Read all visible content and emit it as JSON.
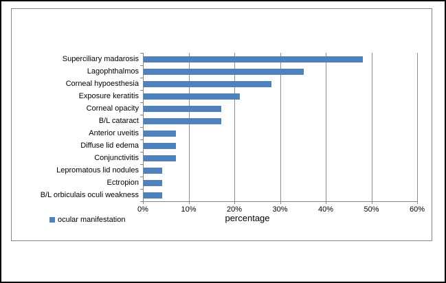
{
  "chart_data": {
    "type": "bar",
    "orientation": "horizontal",
    "title": "",
    "xlabel": "percentage",
    "ylabel": "",
    "categories": [
      "Superciliary madarosis",
      "Lagophthalmos",
      "Corneal hypoesthesia",
      "Exposure keratitis",
      "Corneal opacity",
      "B/L cataract",
      "Anterior uveitis",
      "Diffuse lid edema",
      "Conjunctivitis",
      "Lepromatous lid nodules",
      "Ectropion",
      "B/L orbiculais oculi weakness"
    ],
    "series": [
      {
        "name": "ocular manifestation",
        "values": [
          48,
          35,
          28,
          21,
          17,
          17,
          7,
          7,
          7,
          4,
          4,
          4
        ]
      }
    ],
    "x_ticks": [
      "0%",
      "10%",
      "20%",
      "30%",
      "40%",
      "50%",
      "60%"
    ],
    "x_tick_values": [
      0,
      10,
      20,
      30,
      40,
      50,
      60
    ],
    "xlim": [
      0,
      60
    ],
    "grid": true,
    "legend_position": "bottom-left",
    "colors": {
      "bar": "#4F81BD",
      "axis": "#848484",
      "gridline": "#8C8C8C",
      "text": "#000000",
      "frame": "#848484",
      "outer_border": "#000000"
    }
  }
}
